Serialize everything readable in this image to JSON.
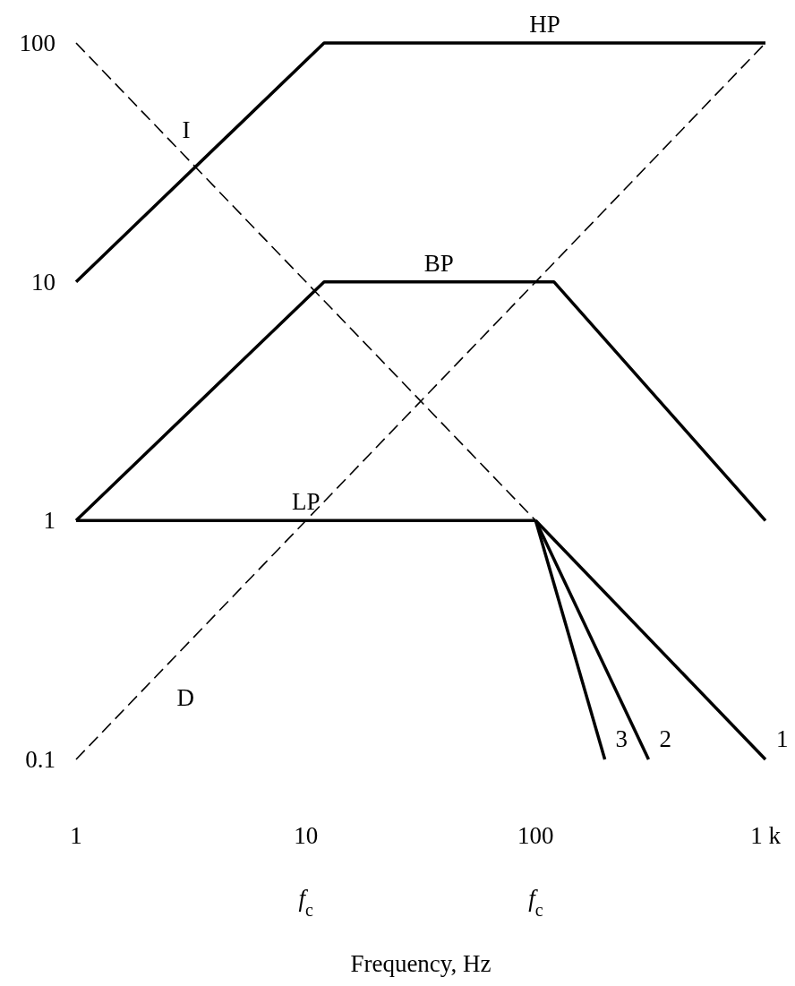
{
  "chart_data": {
    "type": "line",
    "xlabel": "Frequency, Hz",
    "log": "xy",
    "xlim": [
      1,
      1000
    ],
    "ylim": [
      0.1,
      100
    ],
    "xticks": [
      1,
      10,
      100,
      {
        "value": 1000,
        "label": "1 k"
      }
    ],
    "yticks": [
      0.1,
      1,
      10,
      100
    ],
    "series": [
      {
        "name": "HP",
        "color": "#000000",
        "line_style": "solid",
        "x": [
          1,
          12,
          1000
        ],
        "values": [
          10,
          100,
          100
        ]
      },
      {
        "name": "BP",
        "color": "#000000",
        "line_style": "solid",
        "x": [
          1,
          12,
          120,
          1000
        ],
        "values": [
          1,
          10,
          10,
          1
        ]
      },
      {
        "name": "LP",
        "color": "#000000",
        "line_style": "solid",
        "x": [
          1,
          100
        ],
        "values": [
          1,
          1
        ]
      },
      {
        "name": "1",
        "color": "#000000",
        "line_style": "solid",
        "x": [
          100,
          1000
        ],
        "values": [
          1,
          0.1
        ]
      },
      {
        "name": "2",
        "color": "#000000",
        "line_style": "solid",
        "x": [
          100,
          310
        ],
        "values": [
          1,
          0.1
        ]
      },
      {
        "name": "3",
        "color": "#000000",
        "line_style": "solid",
        "x": [
          100,
          200
        ],
        "values": [
          1,
          0.1
        ]
      },
      {
        "name": "I",
        "color": "#000000",
        "line_style": "dashed",
        "x": [
          1,
          1000
        ],
        "values": [
          100,
          0.1
        ]
      },
      {
        "name": "D",
        "color": "#000000",
        "line_style": "dashed",
        "x": [
          1,
          1000
        ],
        "values": [
          0.1,
          100
        ]
      }
    ],
    "annotations": [
      "f$_{c}$",
      "f$_{c}$"
    ]
  }
}
